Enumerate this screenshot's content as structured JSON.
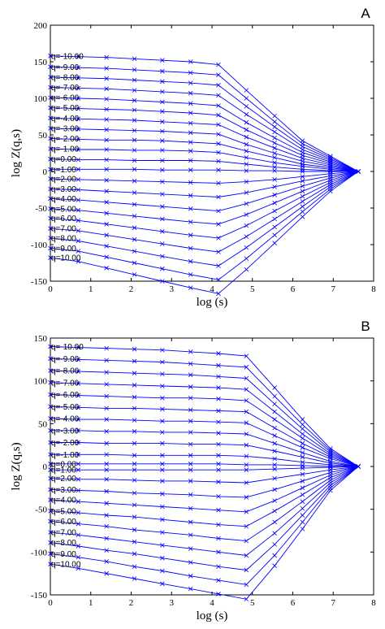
{
  "chart_data": [
    {
      "type": "line",
      "panel_letter": "A",
      "xlabel": "log (s)",
      "ylabel": "log Z(q,s)",
      "xlim": [
        0,
        8
      ],
      "ylim": [
        -150,
        200
      ],
      "xticks": [
        0,
        1,
        2,
        3,
        4,
        5,
        6,
        7,
        8
      ],
      "yticks": [
        -150,
        -100,
        -50,
        0,
        50,
        100,
        150,
        200
      ],
      "grid": false,
      "color": "#0000ff",
      "marker": "x",
      "x": [
        0,
        0.69,
        1.39,
        2.08,
        2.77,
        3.47,
        4.16,
        4.85,
        5.55,
        6.24,
        6.93,
        7.62
      ],
      "series": [
        {
          "name": "q=-10.00",
          "values": [
            158,
            157,
            156,
            154,
            152,
            150,
            146,
            111,
            76,
            42,
            21,
            0
          ]
        },
        {
          "name": "q=-9.00",
          "values": [
            143,
            142,
            141,
            139,
            137,
            135,
            132,
            100,
            68,
            38,
            19,
            0
          ]
        },
        {
          "name": "q=-8.00",
          "values": [
            129,
            128,
            127,
            125,
            123,
            121,
            118,
            89,
            61,
            34,
            17,
            0
          ]
        },
        {
          "name": "q=-7.00",
          "values": [
            115,
            114,
            113,
            111,
            109,
            107,
            104,
            78,
            54,
            30,
            15,
            0
          ]
        },
        {
          "name": "q=-6.00",
          "values": [
            101,
            100,
            99,
            97,
            95,
            93,
            90,
            67,
            46,
            26,
            13,
            0
          ]
        },
        {
          "name": "q=-5.00",
          "values": [
            87,
            86,
            85,
            84,
            82,
            80,
            77,
            57,
            39,
            22,
            11,
            0
          ]
        },
        {
          "name": "q=-4.00",
          "values": [
            73,
            72,
            71,
            70,
            68,
            66,
            64,
            47,
            32,
            18,
            9,
            0
          ]
        },
        {
          "name": "q=-3.00",
          "values": [
            59,
            58,
            57,
            56,
            55,
            53,
            51,
            37,
            25,
            14,
            7,
            0
          ]
        },
        {
          "name": "q=-2.00",
          "values": [
            45,
            44,
            43,
            43,
            42,
            40,
            38,
            28,
            19,
            10,
            5,
            0
          ]
        },
        {
          "name": "q=-1.00",
          "values": [
            31,
            30,
            30,
            29,
            29,
            28,
            26,
            19,
            12,
            7,
            3,
            0
          ]
        },
        {
          "name": "q=0.00",
          "values": [
            17,
            16,
            16,
            15,
            15,
            15,
            14,
            10,
            6,
            3,
            1,
            0
          ]
        },
        {
          "name": "q=1.00",
          "values": [
            3,
            3,
            3,
            3,
            2,
            2,
            2,
            1,
            1,
            0,
            0,
            0
          ]
        },
        {
          "name": "q=2.00",
          "values": [
            -10,
            -11,
            -12,
            -13,
            -14,
            -15,
            -16,
            -14,
            -11,
            -7,
            -3,
            0
          ]
        },
        {
          "name": "q=3.00",
          "values": [
            -24,
            -25,
            -27,
            -29,
            -31,
            -33,
            -35,
            -29,
            -21,
            -13,
            -6,
            0
          ]
        },
        {
          "name": "q=4.00",
          "values": [
            -37,
            -39,
            -42,
            -45,
            -48,
            -51,
            -54,
            -44,
            -32,
            -20,
            -9,
            0
          ]
        },
        {
          "name": "q=5.00",
          "values": [
            -51,
            -53,
            -57,
            -61,
            -65,
            -69,
            -72,
            -59,
            -43,
            -27,
            -12,
            0
          ]
        },
        {
          "name": "q=6.00",
          "values": [
            -64,
            -67,
            -72,
            -77,
            -82,
            -87,
            -91,
            -74,
            -54,
            -34,
            -15,
            0
          ]
        },
        {
          "name": "q=7.00",
          "values": [
            -78,
            -81,
            -87,
            -93,
            -99,
            -105,
            -110,
            -89,
            -65,
            -41,
            -18,
            0
          ]
        },
        {
          "name": "q=8.00",
          "values": [
            -91,
            -95,
            -102,
            -109,
            -116,
            -123,
            -129,
            -104,
            -76,
            -48,
            -21,
            0
          ]
        },
        {
          "name": "q=9.00",
          "values": [
            -105,
            -109,
            -117,
            -125,
            -133,
            -141,
            -148,
            -119,
            -87,
            -55,
            -24,
            0
          ]
        },
        {
          "name": "q=10.00",
          "values": [
            -118,
            -123,
            -132,
            -141,
            -150,
            -159,
            -167,
            -134,
            -98,
            -62,
            -27,
            0
          ]
        }
      ]
    },
    {
      "type": "line",
      "panel_letter": "B",
      "xlabel": "log (s)",
      "ylabel": "log Z(q,s)",
      "xlim": [
        0,
        8
      ],
      "ylim": [
        -150,
        150
      ],
      "xticks": [
        0,
        1,
        2,
        3,
        4,
        5,
        6,
        7,
        8
      ],
      "yticks": [
        -150,
        -100,
        -50,
        0,
        50,
        100,
        150
      ],
      "grid": false,
      "color": "#0000ff",
      "marker": "x",
      "x": [
        0,
        0.69,
        1.39,
        2.08,
        2.77,
        3.47,
        4.16,
        4.85,
        5.55,
        6.24,
        6.93,
        7.62
      ],
      "series": [
        {
          "name": "q=-10.00",
          "values": [
            140,
            139,
            138,
            137,
            136,
            134,
            132,
            129,
            92,
            55,
            21,
            0
          ]
        },
        {
          "name": "q=-9.00",
          "values": [
            126,
            125,
            124,
            123,
            122,
            120,
            118,
            116,
            82,
            49,
            19,
            0
          ]
        },
        {
          "name": "q=-8.00",
          "values": [
            112,
            111,
            110,
            109,
            108,
            107,
            105,
            103,
            73,
            44,
            17,
            0
          ]
        },
        {
          "name": "q=-7.00",
          "values": [
            98,
            97,
            96,
            95,
            94,
            93,
            92,
            90,
            64,
            38,
            15,
            0
          ]
        },
        {
          "name": "q=-6.00",
          "values": [
            84,
            83,
            82,
            81,
            80,
            80,
            79,
            77,
            55,
            33,
            13,
            0
          ]
        },
        {
          "name": "q=-5.00",
          "values": [
            70,
            69,
            68,
            68,
            67,
            66,
            65,
            64,
            45,
            27,
            11,
            0
          ]
        },
        {
          "name": "q=-4.00",
          "values": [
            56,
            55,
            55,
            54,
            53,
            53,
            52,
            51,
            36,
            22,
            9,
            0
          ]
        },
        {
          "name": "q=-3.00",
          "values": [
            42,
            42,
            41,
            41,
            40,
            40,
            39,
            38,
            27,
            16,
            6,
            0
          ]
        },
        {
          "name": "q=-2.00",
          "values": [
            28,
            28,
            27,
            27,
            27,
            26,
            26,
            25,
            18,
            11,
            4,
            0
          ]
        },
        {
          "name": "q=-1.00",
          "values": [
            14,
            14,
            14,
            13,
            13,
            13,
            13,
            12,
            9,
            5,
            2,
            0
          ]
        },
        {
          "name": "q=0.00",
          "values": [
            3,
            3,
            3,
            3,
            3,
            3,
            3,
            2,
            2,
            1,
            0,
            0
          ]
        },
        {
          "name": "q=1.00",
          "values": [
            -4,
            -4,
            -4,
            -4,
            -4,
            -4,
            -4,
            -4,
            -3,
            -2,
            -1,
            0
          ]
        },
        {
          "name": "q=2.00",
          "values": [
            -14,
            -15,
            -15,
            -16,
            -17,
            -17,
            -18,
            -19,
            -14,
            -9,
            -4,
            0
          ]
        },
        {
          "name": "q=3.00",
          "values": [
            -27,
            -28,
            -29,
            -31,
            -32,
            -33,
            -35,
            -36,
            -27,
            -17,
            -7,
            0
          ]
        },
        {
          "name": "q=4.00",
          "values": [
            -39,
            -41,
            -43,
            -45,
            -47,
            -49,
            -51,
            -53,
            -40,
            -25,
            -10,
            0
          ]
        },
        {
          "name": "q=5.00",
          "values": [
            -52,
            -54,
            -57,
            -59,
            -62,
            -65,
            -68,
            -70,
            -52,
            -33,
            -13,
            0
          ]
        },
        {
          "name": "q=6.00",
          "values": [
            -64,
            -67,
            -70,
            -74,
            -77,
            -80,
            -84,
            -87,
            -65,
            -41,
            -16,
            0
          ]
        },
        {
          "name": "q=7.00",
          "values": [
            -77,
            -80,
            -84,
            -88,
            -92,
            -96,
            -100,
            -104,
            -78,
            -49,
            -19,
            0
          ]
        },
        {
          "name": "q=8.00",
          "values": [
            -89,
            -93,
            -98,
            -102,
            -107,
            -112,
            -117,
            -121,
            -91,
            -57,
            -22,
            0
          ]
        },
        {
          "name": "q=9.00",
          "values": [
            -102,
            -106,
            -111,
            -117,
            -122,
            -128,
            -133,
            -138,
            -104,
            -65,
            -25,
            0
          ]
        },
        {
          "name": "q=10.00",
          "values": [
            -114,
            -119,
            -125,
            -131,
            -137,
            -143,
            -149,
            -155,
            -116,
            -73,
            -28,
            0
          ]
        }
      ]
    }
  ]
}
